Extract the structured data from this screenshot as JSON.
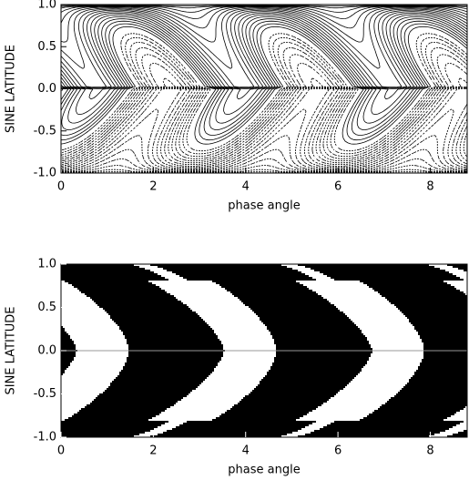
{
  "chart_data": [
    {
      "type": "contour",
      "xlabel": "phase angle",
      "ylabel": "SINE LATITUDE",
      "xlim": [
        0,
        8.8
      ],
      "ylim": [
        -1,
        1
      ],
      "xticks": [
        0,
        2,
        4,
        6,
        8
      ],
      "yticks": [
        {
          "value": -1,
          "label": "-1.0"
        },
        {
          "value": -0.5,
          "label": "-0.5"
        },
        {
          "value": 0,
          "label": "0.0"
        },
        {
          "value": 0.5,
          "label": "0.5"
        },
        {
          "value": 1,
          "label": "1.0"
        }
      ]
    },
    {
      "type": "field",
      "xlabel": "phase angle",
      "ylabel": "SINE LATITUDE",
      "xlim": [
        0,
        8.8
      ],
      "ylim": [
        -1,
        1
      ],
      "xticks": [
        0,
        2,
        4,
        6,
        8
      ],
      "yticks": [
        {
          "value": -1,
          "label": "-1.0"
        },
        {
          "value": -0.5,
          "label": "-0.5"
        },
        {
          "value": 0,
          "label": "0.0"
        },
        {
          "value": 0.5,
          "label": "0.5"
        },
        {
          "value": 1,
          "label": "1.0"
        }
      ]
    }
  ]
}
